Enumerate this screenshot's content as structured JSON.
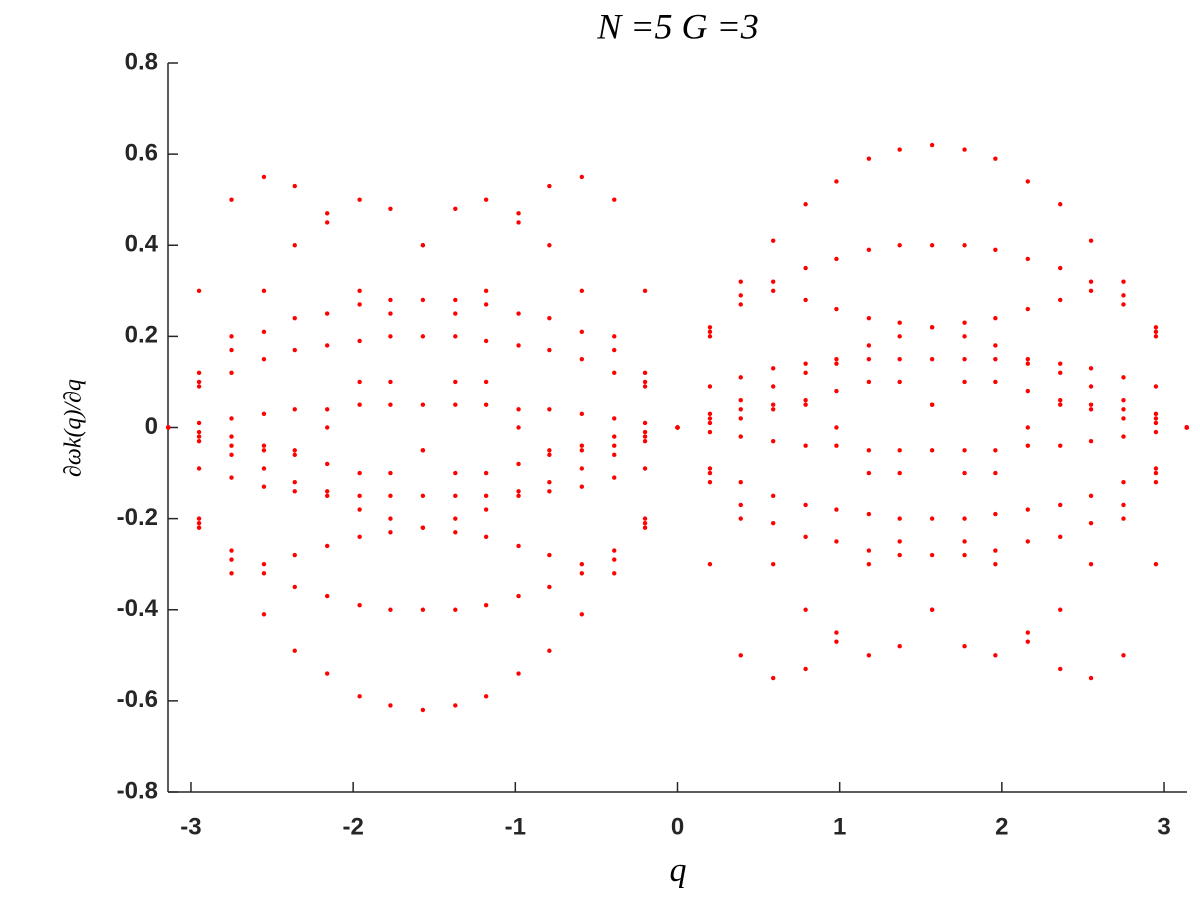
{
  "chart_data": {
    "type": "scatter",
    "title": "N =5 G =3",
    "xlabel": "q",
    "ylabel": "∂ωk(q)/∂q",
    "x": [
      -3.14,
      -2.95,
      -2.75,
      -2.55,
      -2.36,
      -2.16,
      -1.96,
      -1.77,
      -1.57,
      -1.37,
      -1.18,
      -0.98,
      -0.79,
      -0.59,
      -0.39,
      -0.2,
      0,
      0.2,
      0.39,
      0.59,
      0.79,
      0.98,
      1.18,
      1.37,
      1.57,
      1.77,
      1.96,
      2.16,
      2.36,
      2.55,
      2.75,
      2.95,
      3.14
    ],
    "series": [
      {
        "color": "#ff0000",
        "values": [
          0,
          -0.2,
          -0.32,
          -0.41,
          -0.49,
          -0.54,
          -0.59,
          -0.61,
          -0.62,
          -0.61,
          -0.59,
          -0.54,
          -0.49,
          -0.41,
          -0.32,
          -0.2,
          0,
          0.2,
          0.32,
          0.41,
          0.49,
          0.54,
          0.59,
          0.61,
          0.62,
          0.61,
          0.59,
          0.54,
          0.49,
          0.41,
          0.32,
          0.2,
          0
        ]
      },
      {
        "color": "#ff0000",
        "values": [
          0,
          -0.21,
          -0.27,
          -0.32,
          -0.35,
          -0.37,
          -0.39,
          -0.4,
          -0.4,
          -0.4,
          -0.39,
          -0.37,
          -0.35,
          -0.32,
          -0.27,
          -0.21,
          0,
          0.21,
          0.27,
          0.32,
          0.35,
          0.37,
          0.39,
          0.4,
          0.4,
          0.4,
          0.39,
          0.37,
          0.35,
          0.32,
          0.27,
          0.21,
          0
        ]
      },
      {
        "color": "#ff0000",
        "values": [
          0,
          -0.09,
          -0.11,
          -0.13,
          -0.14,
          -0.14,
          -0.15,
          -0.15,
          -0.15,
          -0.15,
          -0.15,
          -0.14,
          -0.14,
          -0.13,
          -0.11,
          -0.09,
          0,
          0.09,
          0.11,
          0.13,
          0.14,
          0.14,
          0.15,
          0.15,
          0.15,
          0.15,
          0.15,
          0.14,
          0.14,
          0.13,
          0.11,
          0.09,
          0
        ]
      },
      {
        "color": "#ff0000",
        "values": [
          0,
          0.12,
          0.17,
          0.21,
          0.24,
          0.25,
          0.27,
          0.28,
          0.28,
          0.28,
          0.27,
          0.25,
          0.24,
          0.21,
          0.17,
          0.12,
          0,
          -0.12,
          -0.17,
          -0.21,
          -0.24,
          -0.25,
          -0.27,
          -0.28,
          -0.28,
          -0.28,
          -0.27,
          -0.25,
          -0.24,
          -0.21,
          -0.17,
          -0.12,
          0
        ]
      },
      {
        "color": "#ff0000",
        "values": [
          0,
          0.09,
          0.12,
          0.15,
          0.17,
          0.18,
          0.19,
          0.2,
          0.2,
          0.2,
          0.19,
          0.18,
          0.17,
          0.15,
          0.12,
          0.09,
          0,
          -0.09,
          -0.12,
          -0.15,
          -0.17,
          -0.18,
          -0.19,
          -0.2,
          -0.2,
          -0.2,
          -0.19,
          -0.18,
          -0.17,
          -0.15,
          -0.12,
          -0.09,
          0
        ]
      },
      {
        "color": "#ff0000",
        "values": [
          0,
          0.01,
          0.02,
          0.03,
          0.04,
          0.04,
          0.05,
          0.05,
          0.05,
          0.05,
          0.05,
          0.04,
          0.04,
          0.03,
          0.02,
          0.01,
          0,
          -0.01,
          -0.02,
          -0.03,
          -0.04,
          -0.04,
          -0.05,
          -0.05,
          -0.05,
          -0.05,
          -0.05,
          -0.04,
          -0.04,
          -0.03,
          -0.02,
          -0.01,
          0
        ]
      },
      {
        "color": "#ff0000",
        "values": [
          0,
          -0.03,
          -0.06,
          -0.09,
          -0.12,
          -0.15,
          -0.18,
          -0.2,
          -0.22,
          -0.23,
          -0.24,
          -0.26,
          -0.28,
          -0.3,
          -0.29,
          -0.22,
          0,
          0.22,
          0.29,
          0.3,
          0.28,
          0.26,
          0.24,
          0.23,
          0.22,
          0.2,
          0.18,
          0.15,
          0.12,
          0.09,
          0.06,
          0.03,
          0
        ]
      },
      {
        "color": "#ff0000",
        "values": [
          0,
          -0.22,
          -0.29,
          -0.3,
          -0.28,
          -0.26,
          -0.24,
          -0.23,
          -0.22,
          -0.2,
          -0.18,
          -0.15,
          -0.12,
          -0.09,
          -0.06,
          -0.03,
          0,
          0.03,
          0.06,
          0.09,
          0.12,
          0.15,
          0.18,
          0.2,
          0.22,
          0.23,
          0.24,
          0.26,
          0.28,
          0.3,
          0.29,
          0.22,
          0
        ]
      },
      {
        "color": "#ff0000",
        "values": [
          0,
          -0.01,
          -0.02,
          -0.04,
          -0.06,
          -0.08,
          -0.1,
          -0.1,
          -0.05,
          0.1,
          0.3,
          0.45,
          0.53,
          0.55,
          0.5,
          0.3,
          0,
          -0.3,
          -0.5,
          -0.55,
          -0.53,
          -0.45,
          -0.3,
          -0.1,
          0.05,
          0.1,
          0.1,
          0.08,
          0.06,
          0.04,
          0.02,
          0.01,
          0
        ]
      },
      {
        "color": "#ff0000",
        "values": [
          0,
          0.3,
          0.5,
          0.55,
          0.53,
          0.45,
          0.3,
          0.1,
          -0.05,
          -0.1,
          -0.1,
          -0.08,
          -0.06,
          -0.04,
          -0.02,
          -0.01,
          0,
          0.01,
          0.02,
          0.04,
          0.06,
          0.08,
          0.1,
          0.1,
          0.05,
          -0.1,
          -0.3,
          -0.45,
          -0.53,
          -0.55,
          -0.5,
          -0.3,
          0
        ]
      },
      {
        "color": "#ff0000",
        "values": [
          0,
          -0.02,
          -0.04,
          -0.05,
          -0.05,
          0,
          0.1,
          0.25,
          0.4,
          0.48,
          0.5,
          0.47,
          0.4,
          0.3,
          0.2,
          0.1,
          0,
          -0.1,
          -0.2,
          -0.3,
          -0.4,
          -0.47,
          -0.5,
          -0.48,
          -0.4,
          -0.25,
          -0.1,
          0,
          0.05,
          0.05,
          0.04,
          0.02,
          0
        ]
      },
      {
        "color": "#ff0000",
        "values": [
          0,
          0.1,
          0.2,
          0.3,
          0.4,
          0.47,
          0.5,
          0.48,
          0.4,
          0.25,
          0.1,
          0,
          -0.05,
          -0.05,
          -0.04,
          -0.02,
          0,
          0.02,
          0.04,
          0.05,
          0.05,
          0,
          -0.1,
          -0.25,
          -0.4,
          -0.48,
          -0.5,
          -0.47,
          -0.4,
          -0.3,
          -0.2,
          -0.1,
          0
        ]
      }
    ],
    "xlim": [
      -3.1416,
      3.1416
    ],
    "xticks": [
      -3,
      -2,
      -1,
      0,
      1,
      2,
      3
    ],
    "ylim": [
      -0.8,
      0.8
    ],
    "yticks": [
      -0.8,
      -0.6,
      -0.4,
      -0.2,
      0,
      0.2,
      0.4,
      0.6,
      0.8
    ]
  }
}
